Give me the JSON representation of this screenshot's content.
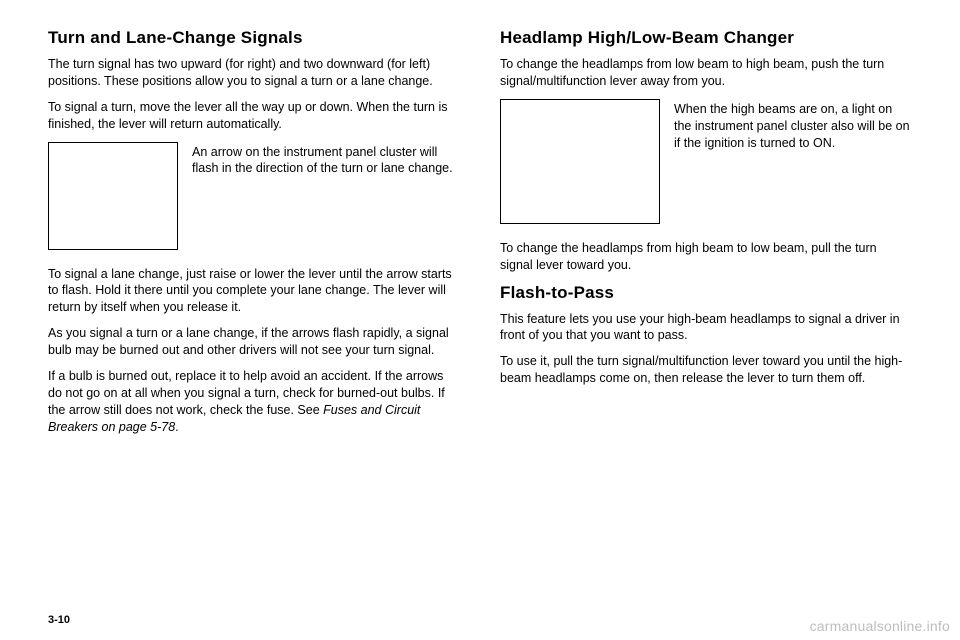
{
  "left": {
    "heading": "Turn and Lane-Change Signals",
    "p1": "The turn signal has two upward (for right) and two downward (for left) positions. These positions allow you to signal a turn or a lane change.",
    "p2": "To signal a turn, move the lever all the way up or down. When the turn is finished, the lever will return automatically.",
    "caption": "An arrow on the instrument panel cluster will flash in the direction of the turn or lane change.",
    "p3": "To signal a lane change, just raise or lower the lever until the arrow starts to flash. Hold it there until you complete your lane change. The lever will return by itself when you release it.",
    "p4": "As you signal a turn or a lane change, if the arrows flash rapidly, a signal bulb may be burned out and other drivers will not see your turn signal.",
    "p5a": "If a bulb is burned out, replace it to help avoid an accident. If the arrows do not go on at all when you signal a turn, check for burned-out bulbs. If the arrow still does not work, check the fuse. See ",
    "p5ref": "Fuses and Circuit Breakers on page 5-78",
    "p5b": "."
  },
  "right": {
    "heading1": "Headlamp High/Low-Beam Changer",
    "p1": "To change the headlamps from low beam to high beam, push the turn signal/multifunction lever away from you.",
    "caption": "When the high beams are on, a light on the instrument panel cluster also will be on if the ignition is turned to ON.",
    "p2": "To change the headlamps from high beam to low beam, pull the turn signal lever toward you.",
    "heading2": "Flash-to-Pass",
    "p3": "This feature lets you use your high-beam headlamps to signal a driver in front of you that you want to pass.",
    "p4": "To use it, pull the turn signal/multifunction lever toward you until the high-beam headlamps come on, then release the lever to turn them off."
  },
  "pagenum": "3-10",
  "watermark": "carmanualsonline.info"
}
